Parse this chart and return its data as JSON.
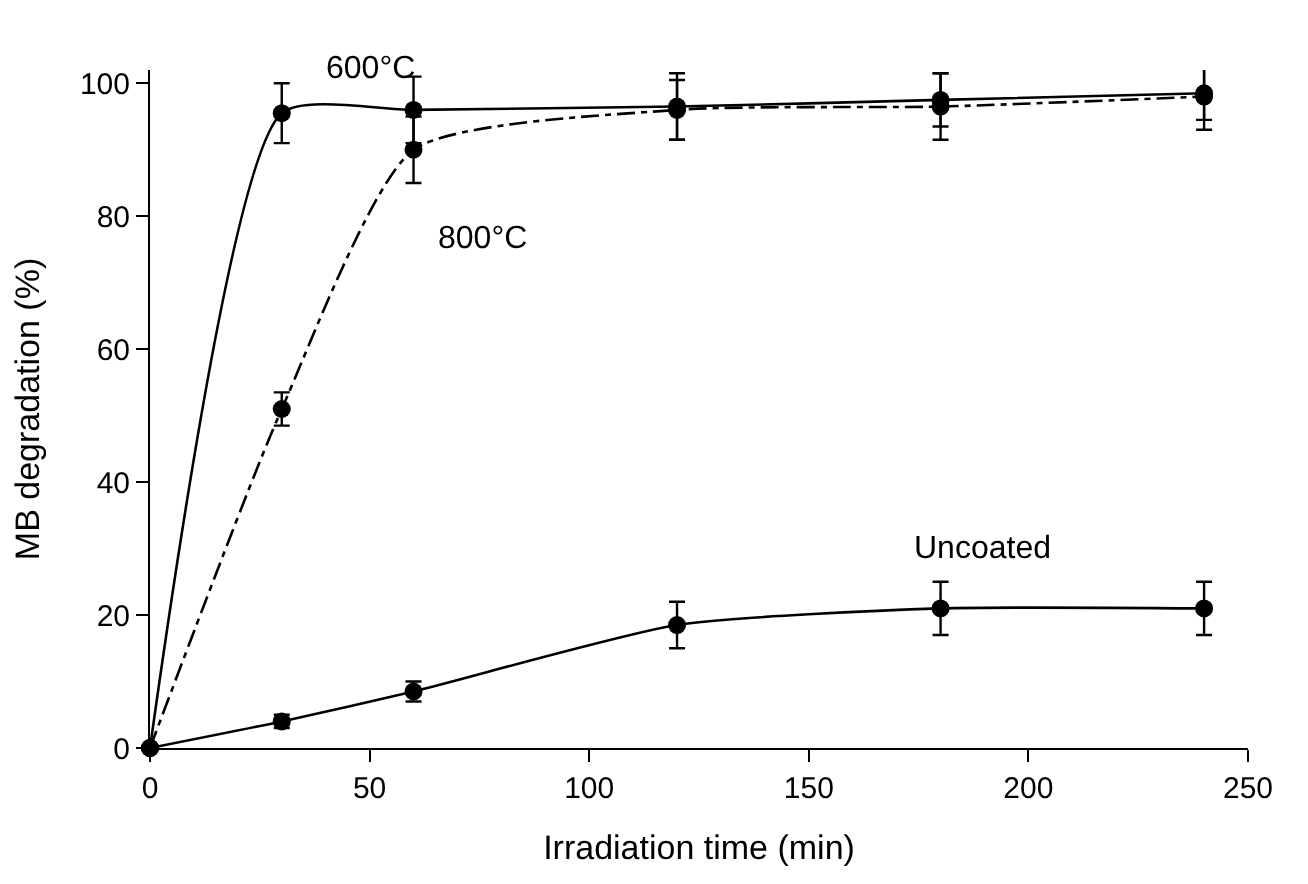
{
  "chart_data": {
    "type": "line",
    "xlabel": "Irradiation time (min)",
    "ylabel": "MB degradation (%)",
    "x": [
      0,
      30,
      60,
      120,
      180,
      240
    ],
    "series": [
      {
        "name": "600°C",
        "color": "#000000",
        "line_style": "solid",
        "values": [
          0,
          95.5,
          96,
          96.5,
          97.5,
          98.5
        ],
        "errors": [
          null,
          4.5,
          5,
          5,
          4,
          4
        ]
      },
      {
        "name": "800°C",
        "color": "#000000",
        "line_style": "dashdot",
        "values": [
          0,
          51,
          90,
          96,
          96.5,
          98
        ],
        "errors": [
          null,
          2.5,
          5,
          4.5,
          5,
          5
        ]
      },
      {
        "name": "Uncoated",
        "color": "#000000",
        "line_style": "solid",
        "values": [
          0,
          4,
          8.5,
          18.5,
          21,
          21
        ],
        "errors": [
          null,
          1,
          1.5,
          3.5,
          4,
          4
        ]
      }
    ],
    "xlim": [
      0,
      250
    ],
    "xticks": [
      0,
      50,
      100,
      150,
      200,
      250
    ],
    "ylim": [
      0,
      102
    ],
    "yticks": [
      0,
      20,
      40,
      60,
      80,
      100
    ],
    "legend": false,
    "marker": "circle"
  }
}
